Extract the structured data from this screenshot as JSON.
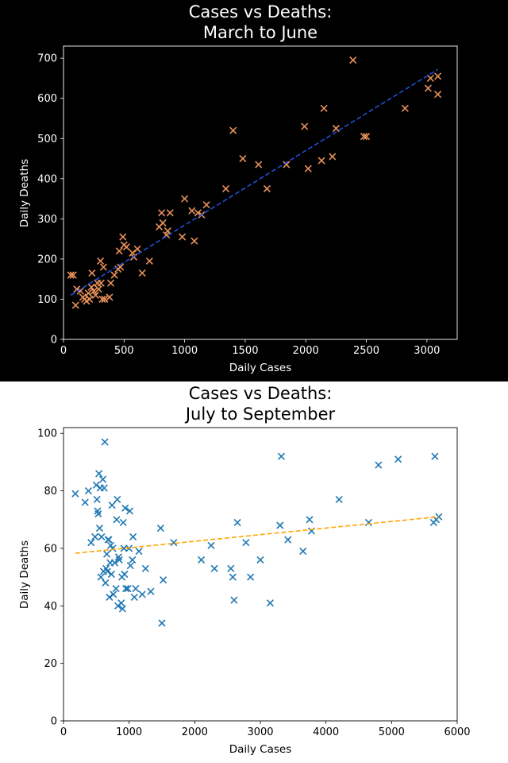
{
  "chart_data": [
    {
      "type": "scatter",
      "title_line1": "Cases vs Deaths:",
      "title_line2": "March to June",
      "xlabel": "Daily Cases",
      "ylabel": "Daily Deaths",
      "xlim": [
        0,
        3250
      ],
      "ylim": [
        0,
        730
      ],
      "xticks": [
        0,
        500,
        1000,
        1500,
        2000,
        2500,
        3000
      ],
      "yticks": [
        0,
        100,
        200,
        300,
        400,
        500,
        600,
        700
      ],
      "grid": false,
      "background": "#000000",
      "text_color": "#ffffff",
      "marker_color": "#e8915a",
      "fit_color": "#1f4fd6",
      "fit_line": {
        "x": [
          60,
          3090
        ],
        "y": [
          110,
          672
        ]
      },
      "points": [
        [
          60,
          160
        ],
        [
          80,
          160
        ],
        [
          100,
          85
        ],
        [
          110,
          125
        ],
        [
          140,
          120
        ],
        [
          160,
          105
        ],
        [
          175,
          100
        ],
        [
          190,
          95
        ],
        [
          205,
          115
        ],
        [
          215,
          100
        ],
        [
          230,
          130
        ],
        [
          235,
          165
        ],
        [
          250,
          120
        ],
        [
          265,
          110
        ],
        [
          280,
          140
        ],
        [
          290,
          125
        ],
        [
          305,
          195
        ],
        [
          310,
          140
        ],
        [
          320,
          100
        ],
        [
          330,
          180
        ],
        [
          340,
          100
        ],
        [
          380,
          105
        ],
        [
          390,
          140
        ],
        [
          420,
          160
        ],
        [
          450,
          175
        ],
        [
          460,
          220
        ],
        [
          470,
          180
        ],
        [
          490,
          255
        ],
        [
          500,
          235
        ],
        [
          520,
          230
        ],
        [
          570,
          215
        ],
        [
          580,
          205
        ],
        [
          610,
          225
        ],
        [
          650,
          165
        ],
        [
          710,
          195
        ],
        [
          790,
          280
        ],
        [
          810,
          315
        ],
        [
          820,
          290
        ],
        [
          850,
          260
        ],
        [
          860,
          270
        ],
        [
          880,
          315
        ],
        [
          980,
          255
        ],
        [
          1000,
          350
        ],
        [
          1060,
          320
        ],
        [
          1080,
          245
        ],
        [
          1110,
          315
        ],
        [
          1140,
          310
        ],
        [
          1180,
          335
        ],
        [
          1340,
          375
        ],
        [
          1400,
          520
        ],
        [
          1480,
          450
        ],
        [
          1610,
          435
        ],
        [
          1680,
          375
        ],
        [
          1840,
          435
        ],
        [
          1990,
          530
        ],
        [
          2020,
          425
        ],
        [
          2130,
          445
        ],
        [
          2150,
          575
        ],
        [
          2220,
          455
        ],
        [
          2250,
          525
        ],
        [
          2390,
          695
        ],
        [
          2480,
          505
        ],
        [
          2500,
          505
        ],
        [
          2820,
          575
        ],
        [
          3010,
          625
        ],
        [
          3030,
          650
        ],
        [
          3090,
          655
        ],
        [
          3090,
          610
        ]
      ]
    },
    {
      "type": "scatter",
      "title_line1": "Cases vs Deaths:",
      "title_line2": "July to September",
      "xlabel": "Daily Cases",
      "ylabel": "Daily Deaths",
      "xlim": [
        0,
        6000
      ],
      "ylim": [
        0,
        102
      ],
      "xticks": [
        0,
        1000,
        2000,
        3000,
        4000,
        5000,
        6000
      ],
      "yticks": [
        0,
        20,
        40,
        60,
        80,
        100
      ],
      "grid": false,
      "background": "#ffffff",
      "text_color": "#000000",
      "marker_color": "#1f77b4",
      "fit_color": "#ffa500",
      "fit_line": {
        "x": [
          180,
          5720
        ],
        "y": [
          58.3,
          71.0
        ]
      },
      "points": [
        [
          180,
          79
        ],
        [
          330,
          76
        ],
        [
          380,
          80
        ],
        [
          420,
          62
        ],
        [
          480,
          64
        ],
        [
          500,
          82
        ],
        [
          510,
          77
        ],
        [
          520,
          73
        ],
        [
          530,
          72
        ],
        [
          540,
          86
        ],
        [
          550,
          67
        ],
        [
          560,
          81
        ],
        [
          570,
          50
        ],
        [
          580,
          64
        ],
        [
          600,
          84
        ],
        [
          610,
          52
        ],
        [
          620,
          81
        ],
        [
          630,
          97
        ],
        [
          640,
          48
        ],
        [
          650,
          53
        ],
        [
          660,
          58
        ],
        [
          670,
          52
        ],
        [
          680,
          63
        ],
        [
          690,
          63
        ],
        [
          700,
          43
        ],
        [
          710,
          55
        ],
        [
          720,
          61
        ],
        [
          730,
          51
        ],
        [
          740,
          75
        ],
        [
          750,
          60
        ],
        [
          760,
          44
        ],
        [
          780,
          55
        ],
        [
          800,
          46
        ],
        [
          810,
          70
        ],
        [
          820,
          77
        ],
        [
          830,
          40
        ],
        [
          840,
          57
        ],
        [
          850,
          56
        ],
        [
          880,
          41
        ],
        [
          890,
          50
        ],
        [
          900,
          39
        ],
        [
          910,
          69
        ],
        [
          920,
          60
        ],
        [
          930,
          51
        ],
        [
          940,
          74
        ],
        [
          950,
          46
        ],
        [
          980,
          46
        ],
        [
          1000,
          60
        ],
        [
          1010,
          73
        ],
        [
          1020,
          54
        ],
        [
          1050,
          56
        ],
        [
          1060,
          64
        ],
        [
          1080,
          43
        ],
        [
          1100,
          46
        ],
        [
          1150,
          59
        ],
        [
          1200,
          44
        ],
        [
          1250,
          53
        ],
        [
          1330,
          45
        ],
        [
          1480,
          67
        ],
        [
          1500,
          34
        ],
        [
          1520,
          49
        ],
        [
          1680,
          62
        ],
        [
          2100,
          56
        ],
        [
          2250,
          61
        ],
        [
          2300,
          53
        ],
        [
          2550,
          53
        ],
        [
          2580,
          50
        ],
        [
          2600,
          42
        ],
        [
          2650,
          69
        ],
        [
          2780,
          62
        ],
        [
          2850,
          50
        ],
        [
          3000,
          56
        ],
        [
          3150,
          41
        ],
        [
          3300,
          68
        ],
        [
          3320,
          92
        ],
        [
          3420,
          63
        ],
        [
          3650,
          59
        ],
        [
          3750,
          70
        ],
        [
          3780,
          66
        ],
        [
          4200,
          77
        ],
        [
          4650,
          69
        ],
        [
          4800,
          89
        ],
        [
          5100,
          91
        ],
        [
          5640,
          69
        ],
        [
          5660,
          92
        ],
        [
          5680,
          70
        ],
        [
          5720,
          71
        ]
      ]
    }
  ]
}
